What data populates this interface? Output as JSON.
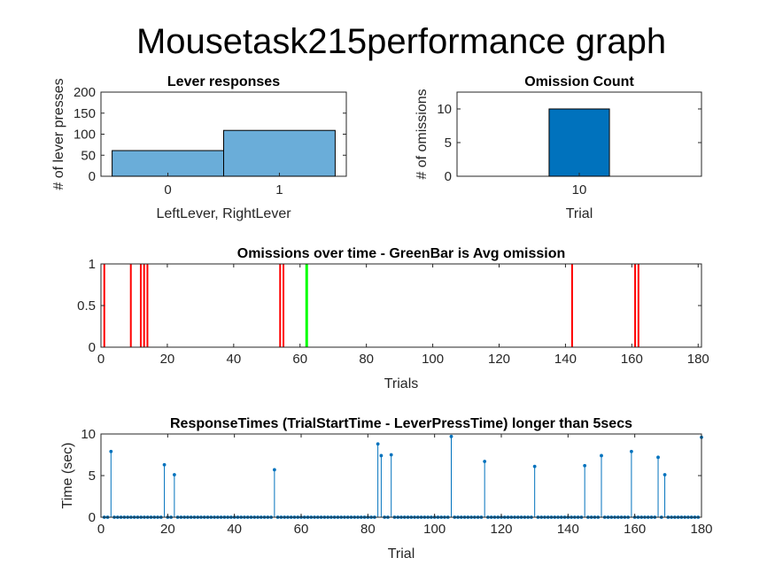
{
  "figure_title": "Mousetask215performance graph",
  "chart_data": [
    {
      "type": "bar",
      "title": "Lever responses",
      "xlabel": "LeftLever, RightLever",
      "ylabel": "# of lever presses",
      "categories": [
        "0",
        "1"
      ],
      "values": [
        61,
        109
      ],
      "ylim": [
        0,
        200
      ],
      "yticks": [
        0,
        50,
        100,
        150,
        200
      ],
      "bar_color": "#6aadd9"
    },
    {
      "type": "bar",
      "title": "Omission Count",
      "xlabel": "Trial",
      "ylabel": "# of omissions",
      "categories": [
        "10"
      ],
      "values": [
        10
      ],
      "ylim": [
        0,
        12.5
      ],
      "yticks": [
        0,
        5,
        10
      ],
      "bar_color": "#0072bd"
    },
    {
      "type": "line",
      "title": "Omissions over time - GreenBar is Avg omission",
      "xlabel": "Trials",
      "ylabel": "",
      "xlim": [
        0,
        181
      ],
      "ylim": [
        0,
        1
      ],
      "xticks": [
        0,
        20,
        40,
        60,
        80,
        100,
        120,
        140,
        160,
        180
      ],
      "yticks": [
        "0",
        "0.5",
        "1"
      ],
      "omission_trials": [
        1,
        9,
        12,
        13,
        14,
        54,
        55,
        142,
        161,
        162
      ],
      "avg_omission_trial": 62,
      "omission_color": "#ff0000",
      "avg_color": "#00ff00"
    },
    {
      "type": "scatter",
      "title": "ResponseTimes (TrialStartTime - LeverPressTime) longer than 5secs",
      "xlabel": "Trial",
      "ylabel": "Time (sec)",
      "xlim": [
        0,
        180
      ],
      "ylim": [
        0,
        10
      ],
      "xticks": [
        0,
        20,
        40,
        60,
        80,
        100,
        120,
        140,
        160,
        180
      ],
      "yticks": [
        0,
        5,
        10
      ],
      "n_trials": 180,
      "stems": [
        {
          "x": 3,
          "y": 7.9
        },
        {
          "x": 19,
          "y": 6.3
        },
        {
          "x": 22,
          "y": 5.1
        },
        {
          "x": 52,
          "y": 5.7
        },
        {
          "x": 83,
          "y": 8.8
        },
        {
          "x": 84,
          "y": 7.4
        },
        {
          "x": 87,
          "y": 7.5
        },
        {
          "x": 105,
          "y": 9.7
        },
        {
          "x": 115,
          "y": 6.7
        },
        {
          "x": 130,
          "y": 6.1
        },
        {
          "x": 145,
          "y": 6.2
        },
        {
          "x": 150,
          "y": 7.4
        },
        {
          "x": 159,
          "y": 7.9
        },
        {
          "x": 167,
          "y": 7.2
        },
        {
          "x": 169,
          "y": 5.1
        },
        {
          "x": 180,
          "y": 9.6
        }
      ],
      "stem_color": "#0072bd"
    }
  ]
}
